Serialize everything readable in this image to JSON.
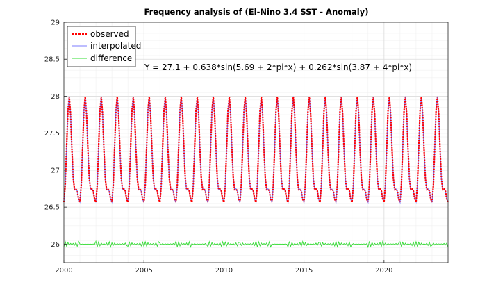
{
  "chart_data": {
    "type": "line",
    "title": "Frequency analysis of (El-Nino 3.4 SST - Anomaly)",
    "xlabel": "",
    "ylabel": "",
    "xlim": [
      2000,
      2024
    ],
    "ylim": [
      25.75,
      29
    ],
    "xticks": [
      2000,
      2005,
      2010,
      2015,
      2020
    ],
    "yticks": [
      26,
      26.5,
      27,
      27.5,
      28,
      28.5,
      29
    ],
    "xtick_labels": [
      "2000",
      "2005",
      "2010",
      "2015",
      "2020"
    ],
    "ytick_labels": [
      "26",
      "26.5",
      "27",
      "27.5",
      "28",
      "28.5",
      "29"
    ],
    "grid": true,
    "legend_position": "top-left",
    "annotation": "Y = 27.1 + 0.638*sin(5.69 + 2*pi*x) + 0.262*sin(3.87 + 4*pi*x)",
    "model": {
      "mean": 27.1,
      "a1": 0.638,
      "p1": 5.69,
      "a2": 0.262,
      "p2": 3.87
    },
    "series": [
      {
        "name": "observed",
        "color": "#ff0000",
        "style": "dotted",
        "samples_per_year": 12
      },
      {
        "name": "interpolated",
        "color": "#7b7bff",
        "style": "solid",
        "samples_per_year": 12
      },
      {
        "name": "difference",
        "color": "#33dd33",
        "style": "solid",
        "baseline": 26.0,
        "amplitude": 0.04,
        "samples_per_year": 12
      }
    ]
  }
}
